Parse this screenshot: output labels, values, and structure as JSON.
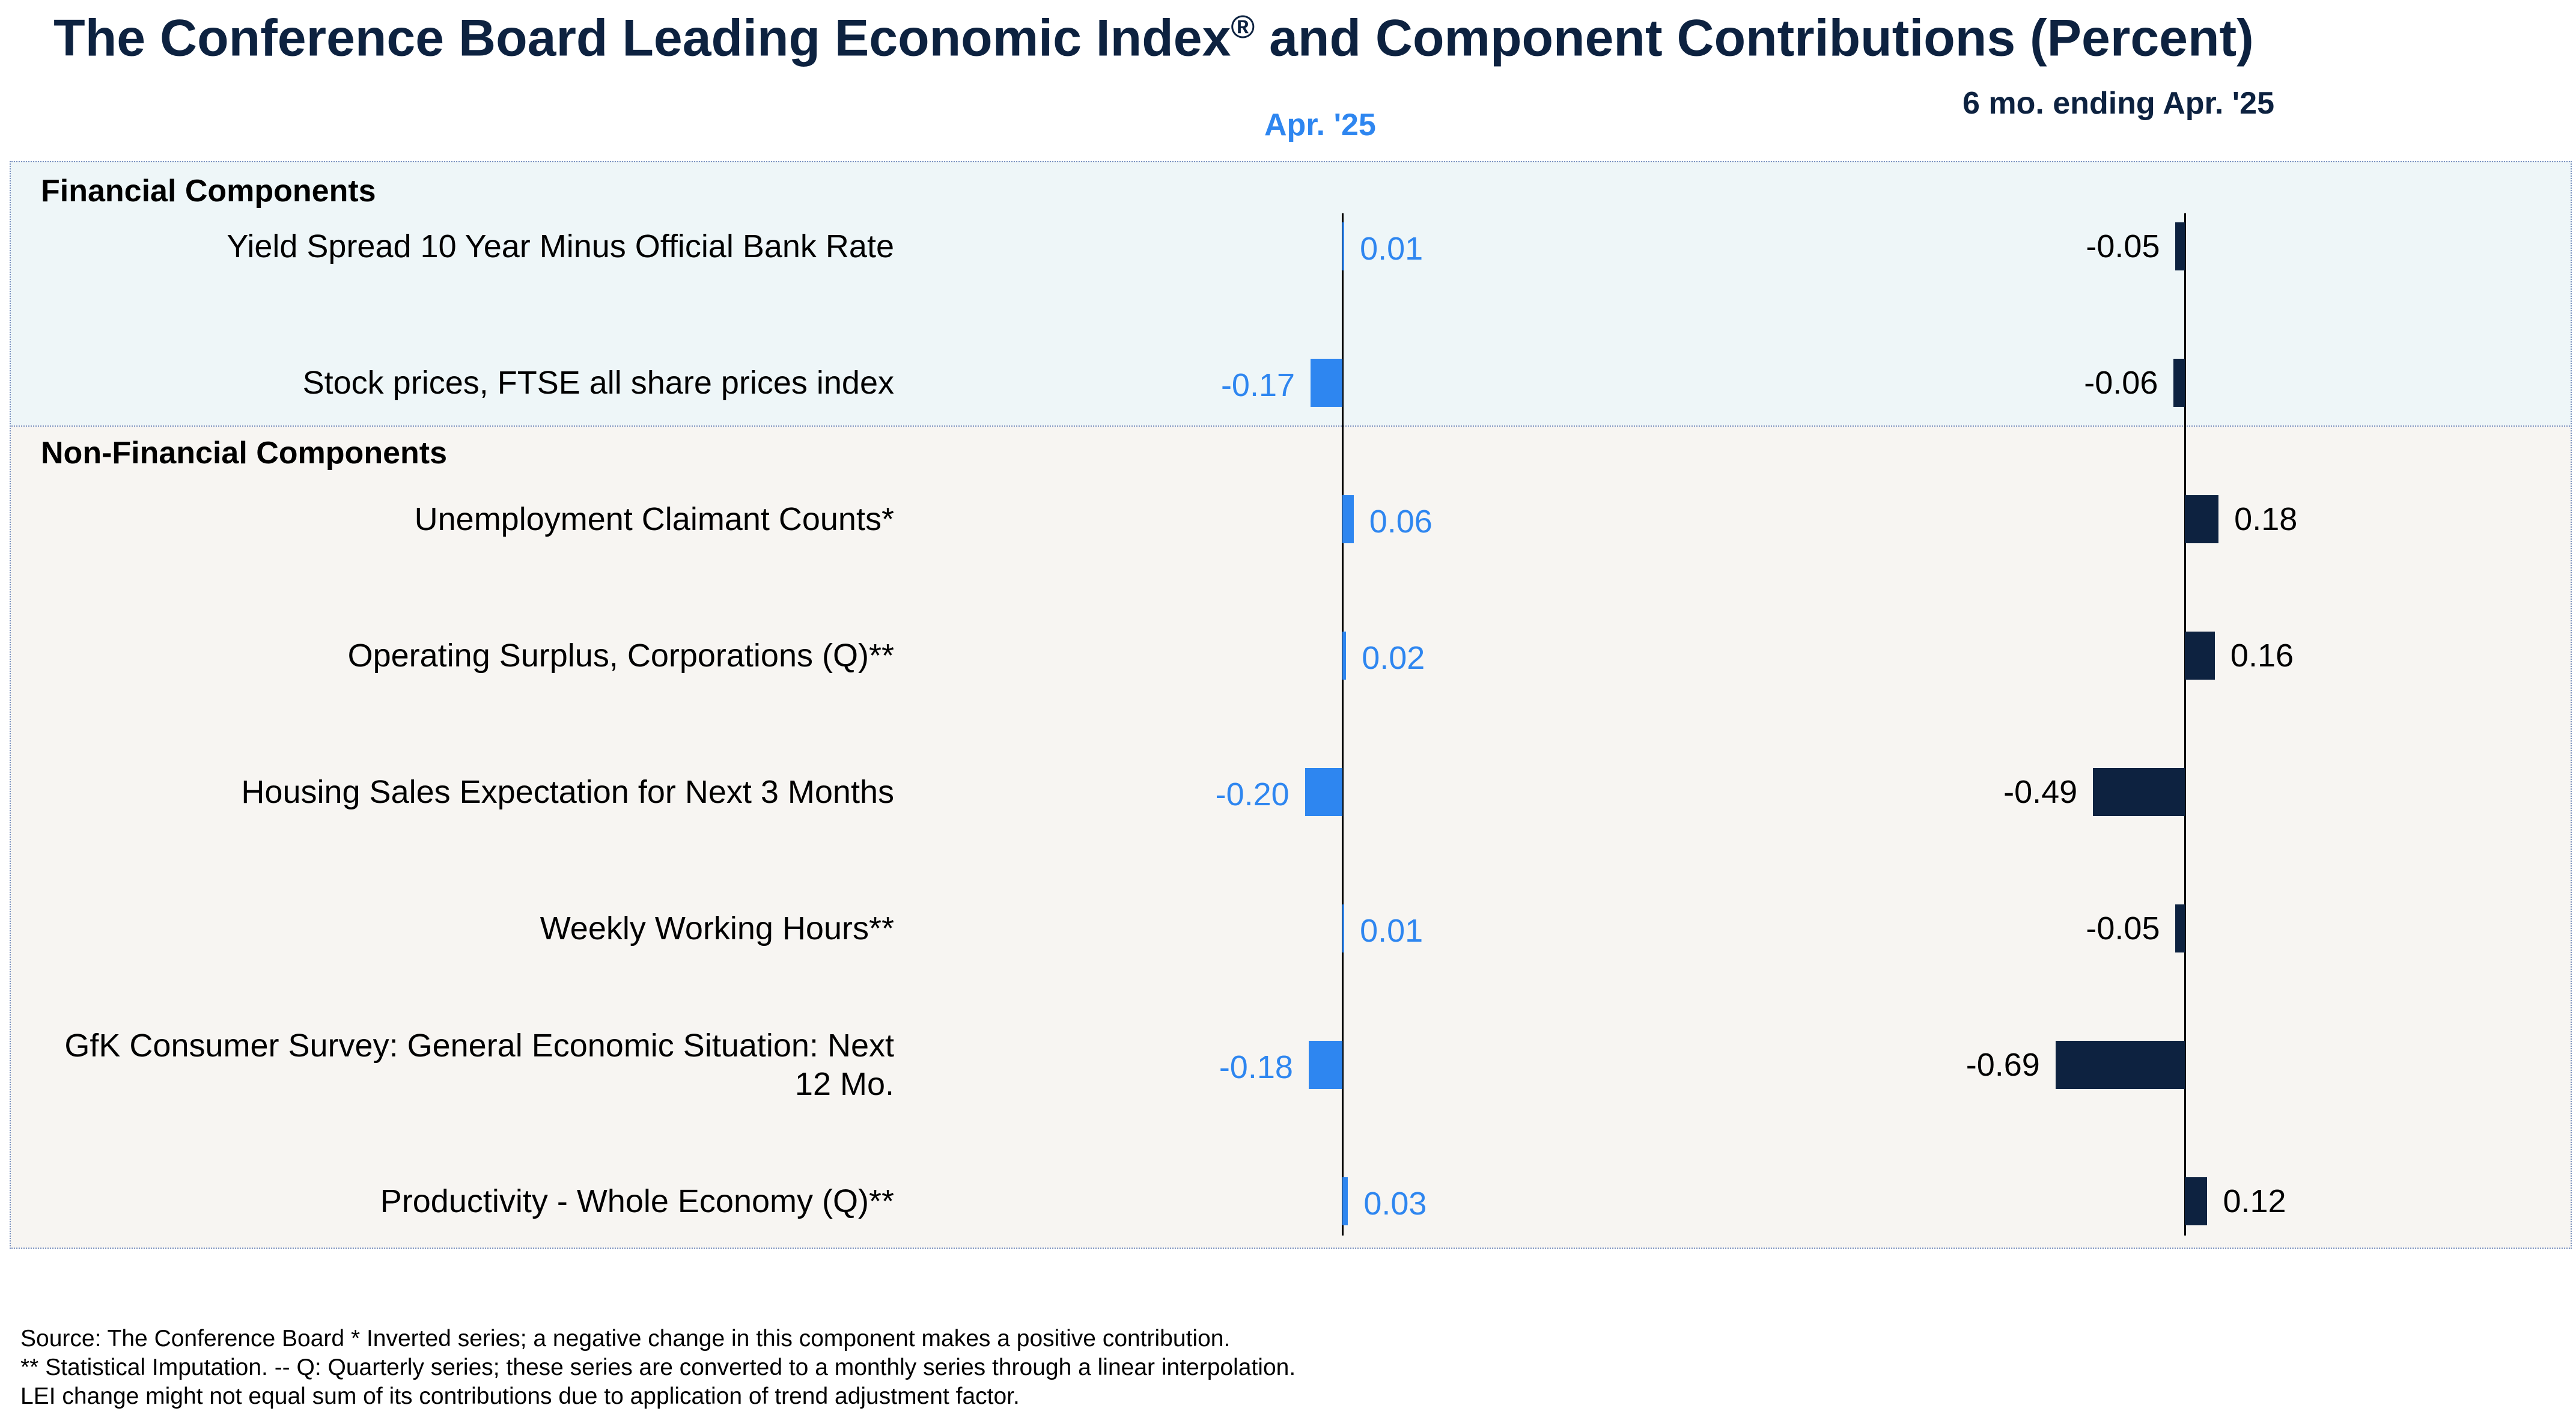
{
  "title": "The Conference Board Leading Economic Index",
  "title_mark": "®",
  "title_tail": " and Component Contributions (Percent)",
  "col_a_label": "Apr. '25",
  "col_b_label": "6 mo. ending Apr. '25",
  "sections": {
    "financial": "Financial Components",
    "non_financial": "Non-Financial Components"
  },
  "colors": {
    "monthly": "#2e86f0",
    "six_month": "#0d2240",
    "financial_bg": "#eef6f8",
    "non_financial_bg": "#f7f5f2"
  },
  "chart_data": {
    "type": "bar",
    "orientation": "horizontal",
    "categories": [
      "Yield Spread 10 Year Minus Official Bank Rate",
      "Stock prices, FTSE all share prices index",
      "Unemployment Claimant Counts*",
      "Operating Surplus, Corporations (Q)**",
      "Housing Sales Expectation for Next 3 Months",
      "Weekly Working Hours**",
      "GfK Consumer Survey: General Economic Situation: Next 12 Mo.",
      "Productivity - Whole Economy (Q)**"
    ],
    "series": [
      {
        "name": "Apr. '25",
        "values": [
          0.01,
          -0.17,
          0.06,
          0.02,
          -0.2,
          0.01,
          -0.18,
          0.03
        ],
        "labels": [
          "0.01",
          "-0.17",
          "0.06",
          "0.02",
          "-0.20",
          "0.01",
          "-0.18",
          "0.03"
        ]
      },
      {
        "name": "6 mo. ending Apr. '25",
        "values": [
          -0.05,
          -0.06,
          0.18,
          0.16,
          -0.49,
          -0.05,
          -0.69,
          0.12
        ],
        "labels": [
          "-0.05",
          "-0.06",
          "0.18",
          "0.16",
          "-0.49",
          "-0.05",
          "-0.69",
          "0.12"
        ]
      }
    ],
    "groups": [
      {
        "name": "Financial Components",
        "count": 2
      },
      {
        "name": "Non-Financial Components",
        "count": 6
      }
    ]
  },
  "footnotes": [
    "Source: The Conference Board *  Inverted series; a negative change in this component makes a positive contribution.",
    "**  Statistical Imputation. -- Q: Quarterly series; these series are converted to a monthly series through a linear interpolation.",
    "LEI change might not equal sum of its contributions due to application of trend adjustment factor."
  ]
}
